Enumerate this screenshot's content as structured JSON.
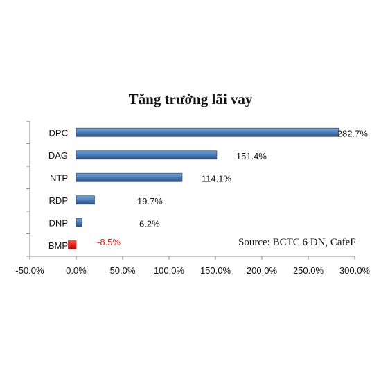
{
  "chart_data": {
    "type": "bar",
    "orientation": "horizontal",
    "title": "Tăng trưởng lãi vay",
    "categories": [
      "DPC",
      "DAG",
      "NTP",
      "RDP",
      "DNP",
      "BMP"
    ],
    "values": [
      282.7,
      151.4,
      114.1,
      19.7,
      6.2,
      -8.5
    ],
    "data_labels": [
      "282.7%",
      "151.4%",
      "114.1%",
      "19.7%",
      "6.2%",
      "-8.5%"
    ],
    "xlim": [
      -50,
      300
    ],
    "xticks": [
      -50,
      0,
      50,
      100,
      150,
      200,
      250,
      300
    ],
    "xtick_labels": [
      "-50.0%",
      "0.0%",
      "50.0%",
      "100.0%",
      "150.0%",
      "200.0%",
      "250.0%",
      "300.0%"
    ],
    "xlabel": "",
    "ylabel": "",
    "grid": false,
    "legend": "none",
    "annotation": "Source: BCTC 6 DN, CafeF",
    "colors": {
      "positive": "#4f81bd",
      "positive_dark": "#2c4d75",
      "negative": "#e8201c",
      "negative_label": "#e8201c",
      "label": "#111111",
      "axis": "#8c8c8c"
    }
  }
}
